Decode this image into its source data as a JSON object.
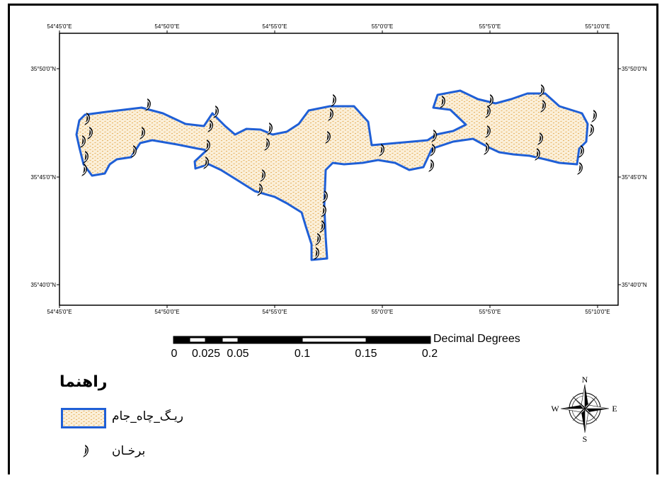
{
  "map": {
    "top_lon_ticks": [
      "54°45'0\"E",
      "54°50'0\"E",
      "54°55'0\"E",
      "55°0'0\"E",
      "55°5'0\"E",
      "55°10'0\"E"
    ],
    "bottom_lon_ticks": [
      "54°45'0\"E",
      "54°50'0\"E",
      "54°55'0\"E",
      "55°0'0\"E",
      "55°5'0\"E",
      "55°10'0\"E"
    ],
    "left_lat_ticks": [
      "35°50'0\"N",
      "35°45'0\"N",
      "35°40'0\"N"
    ],
    "right_lat_ticks": [
      "35°50'0\"N",
      "35°45'0\"N",
      "35°40'0\"N"
    ],
    "sand_fill_color": "#fbefd8",
    "sand_dot_color": "#e0a040",
    "boundary_color": "#1f5fd6"
  },
  "scale_bar": {
    "labels": [
      "0",
      "0.025",
      "0.05",
      "0.1",
      "0.15",
      "0.2"
    ],
    "units": "Decimal Degrees"
  },
  "legend": {
    "title": "راهنما",
    "item_sand": "ریـگ_چاه_جام",
    "item_dune": "برخـان"
  },
  "compass": {
    "n": "N",
    "s": "S",
    "e": "E",
    "w": "W"
  }
}
